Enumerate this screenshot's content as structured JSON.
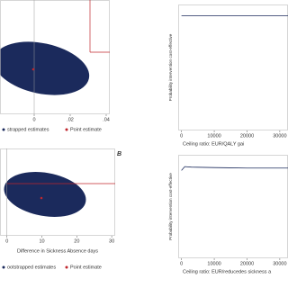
{
  "panel_label": "B",
  "chart_data": [
    {
      "type": "scatter",
      "xlabel": null,
      "xlim": [
        -0.019,
        0.042
      ],
      "xticks": [
        0,
        {
          "value": 0.02,
          "label": ".02"
        },
        {
          "value": 0.04,
          "label": ".04"
        }
      ],
      "series": [
        {
          "name": "strapped estimates",
          "color": "#1b2a5c"
        },
        {
          "name": "Point estimate",
          "color": "#c0272d"
        }
      ]
    },
    {
      "type": "line",
      "ylabel": "Probability intervention cost-effective",
      "xlabel": "Ceiling ratio: EUR/QALY gai",
      "xlim": [
        -1000,
        32500
      ],
      "ylim": [
        0,
        1
      ],
      "xticks": [
        0,
        10000,
        20000,
        30000
      ],
      "x": [
        0,
        5000,
        10000,
        20000,
        30000,
        32500
      ],
      "series": [
        {
          "color": "#1b2a5c",
          "values": [
            0.98,
            0.98,
            0.98,
            0.98,
            0.98,
            0.98
          ]
        }
      ]
    },
    {
      "type": "scatter",
      "xlabel": "Difference in Sickness Absence days",
      "xlim": [
        -2,
        31
      ],
      "xticks": [
        0,
        10,
        20,
        30
      ],
      "series": [
        {
          "name": "ootstrapped estimates",
          "color": "#1b2a5c"
        },
        {
          "name": "Point estimate",
          "color": "#c0272d"
        }
      ]
    },
    {
      "type": "line",
      "ylabel": "Probability intervention cost-effective",
      "xlabel": "Ceiling ratio: EUR/reducedes sickness a",
      "xlim": [
        -1000,
        32500
      ],
      "ylim": [
        0,
        1
      ],
      "xticks": [
        0,
        10000,
        20000,
        30000
      ],
      "x": [
        0,
        1000,
        3000,
        10000,
        20000,
        32500
      ],
      "series": [
        {
          "color": "#1b2a5c",
          "values": [
            0.93,
            0.97,
            0.965,
            0.96,
            0.955,
            0.955
          ]
        }
      ]
    }
  ]
}
